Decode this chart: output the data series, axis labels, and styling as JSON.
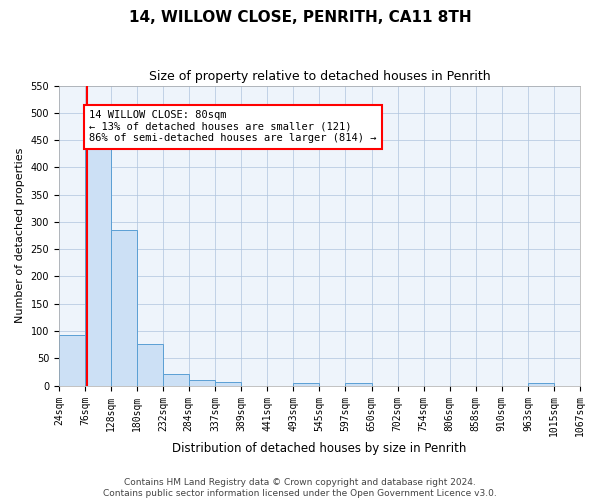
{
  "title1": "14, WILLOW CLOSE, PENRITH, CA11 8TH",
  "title2": "Size of property relative to detached houses in Penrith",
  "xlabel": "Distribution of detached houses by size in Penrith",
  "ylabel": "Number of detached properties",
  "bar_edges": [
    24,
    76,
    128,
    180,
    232,
    284,
    337,
    389,
    441,
    493,
    545,
    597,
    650,
    702,
    754,
    806,
    858,
    910,
    963,
    1015,
    1067
  ],
  "bar_heights": [
    92,
    460,
    285,
    76,
    22,
    10,
    6,
    0,
    0,
    5,
    0,
    5,
    0,
    0,
    0,
    0,
    0,
    0,
    5,
    0,
    0
  ],
  "bar_color": "#cce0f5",
  "bar_edge_color": "#5a9fd4",
  "property_line_x": 80,
  "annotation_text": "14 WILLOW CLOSE: 80sqm\n← 13% of detached houses are smaller (121)\n86% of semi-detached houses are larger (814) →",
  "annotation_box_color": "white",
  "annotation_border_color": "red",
  "property_line_color": "red",
  "ylim": [
    0,
    550
  ],
  "yticks": [
    0,
    50,
    100,
    150,
    200,
    250,
    300,
    350,
    400,
    450,
    500,
    550
  ],
  "grid_color": "#b0c4de",
  "bg_color": "#eef4fb",
  "footer": "Contains HM Land Registry data © Crown copyright and database right 2024.\nContains public sector information licensed under the Open Government Licence v3.0.",
  "title1_fontsize": 11,
  "title2_fontsize": 9,
  "xlabel_fontsize": 8.5,
  "ylabel_fontsize": 8,
  "tick_fontsize": 7,
  "footer_fontsize": 6.5,
  "annot_fontsize": 7.5
}
